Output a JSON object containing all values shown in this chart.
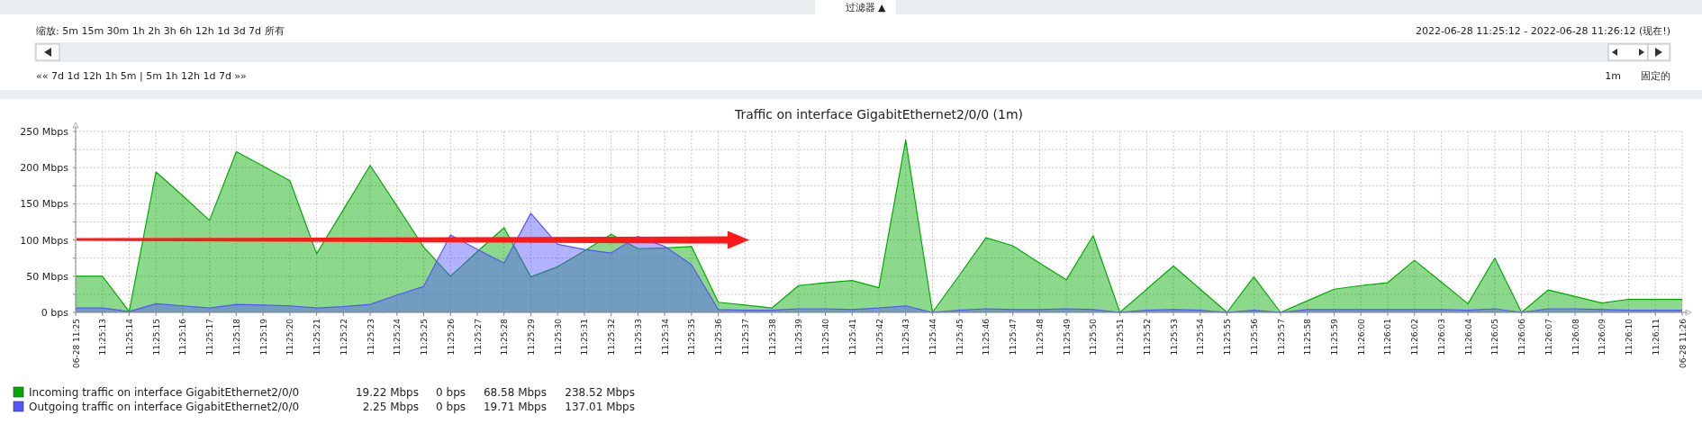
{
  "chart_data": {
    "type": "area",
    "title": "Traffic on interface GigabitEthernet2/0/0 (1m)",
    "categories": [
      "06-28 11:25",
      "11:25:13",
      "11:25:14",
      "11:25:15",
      "11:25:16",
      "11:25:17",
      "11:25:18",
      "11:25:19",
      "11:25:20",
      "11:25:21",
      "11:25:22",
      "11:25:23",
      "11:25:24",
      "11:25:25",
      "11:25:26",
      "11:25:27",
      "11:25:28",
      "11:25:29",
      "11:25:30",
      "11:25:31",
      "11:25:32",
      "11:25:33",
      "11:25:34",
      "11:25:35",
      "11:25:36",
      "11:25:37",
      "11:25:38",
      "11:25:39",
      "11:25:40",
      "11:25:41",
      "11:25:42",
      "11:25:43",
      "11:25:44",
      "11:25:45",
      "11:25:46",
      "11:25:47",
      "11:25:48",
      "11:25:49",
      "11:25:50",
      "11:25:51",
      "11:25:52",
      "11:25:53",
      "11:25:54",
      "11:25:55",
      "11:25:56",
      "11:25:57",
      "11:25:58",
      "11:25:59",
      "11:26:00",
      "11:26:01",
      "11:26:02",
      "11:26:03",
      "11:26:04",
      "11:26:05",
      "11:26:06",
      "11:26:07",
      "11:26:08",
      "11:26:09",
      "11:26:10",
      "11:26:11",
      "06-28 11:26"
    ],
    "series": [
      {
        "name": "Incoming traffic on interface GigabitEthernet2/0/0",
        "color": "#00aa00",
        "values": [
          50,
          50,
          1,
          194,
          161,
          127,
          222,
          202,
          182,
          81,
          142,
          203,
          147,
          90,
          50,
          84,
          117,
          49,
          63,
          85,
          108,
          88,
          89,
          91,
          14,
          10,
          6,
          37,
          41,
          44,
          34,
          238,
          0,
          51,
          103,
          92,
          68,
          45,
          106,
          0,
          32,
          64,
          32,
          0,
          49,
          0,
          16,
          32,
          37,
          41,
          72,
          42,
          12,
          75,
          0,
          31,
          22,
          13,
          18,
          18,
          18
        ]
      },
      {
        "name": "Outgoing traffic on interface GigabitEthernet2/0/0",
        "color": "#5555ff",
        "values": [
          6,
          6,
          1,
          12,
          9,
          6,
          11,
          10,
          9,
          6,
          8,
          11,
          24,
          36,
          107,
          87,
          68,
          137,
          94,
          87,
          82,
          105,
          91,
          66,
          4,
          3,
          3,
          5,
          5,
          4,
          6,
          9,
          0,
          3,
          5,
          4,
          4,
          5,
          4,
          0,
          3,
          4,
          3,
          0,
          3,
          0,
          4,
          4,
          4,
          4,
          4,
          4,
          3,
          5,
          0,
          5,
          5,
          4,
          3,
          3,
          3
        ]
      }
    ],
    "ylim": [
      0,
      250
    ],
    "yticks": [
      {
        "value": 0,
        "label": "0 bps"
      },
      {
        "value": 25,
        "label": null
      },
      {
        "value": 50,
        "label": "50 Mbps"
      },
      {
        "value": 75,
        "label": null
      },
      {
        "value": 100,
        "label": "100 Mbps"
      },
      {
        "value": 125,
        "label": null
      },
      {
        "value": 150,
        "label": "150 Mbps"
      },
      {
        "value": 175,
        "label": null
      },
      {
        "value": 200,
        "label": "200 Mbps"
      },
      {
        "value": 225,
        "label": null
      },
      {
        "value": 250,
        "label": "250 Mbps"
      }
    ],
    "grid": true,
    "legend": "bottom",
    "annotations": [
      "过滤器 ▲",
      "缩放: 5m 15m 30m 1h 2h 3h 6h 12h 1d 3d 7d 所有",
      "2022-06-28 11:25:12 - 2022-06-28 11:26:12 (现在!)",
      "«« 7d 1d 12h 1h 5m | 5m 1h 12h 1d 7d »»",
      "1m",
      "固定的",
      "19.22 Mbps",
      "0 bps",
      "68.58 Mbps",
      "238.52 Mbps",
      "2.25 Mbps",
      "0 bps",
      "19.71 Mbps",
      "137.01 Mbps"
    ]
  }
}
